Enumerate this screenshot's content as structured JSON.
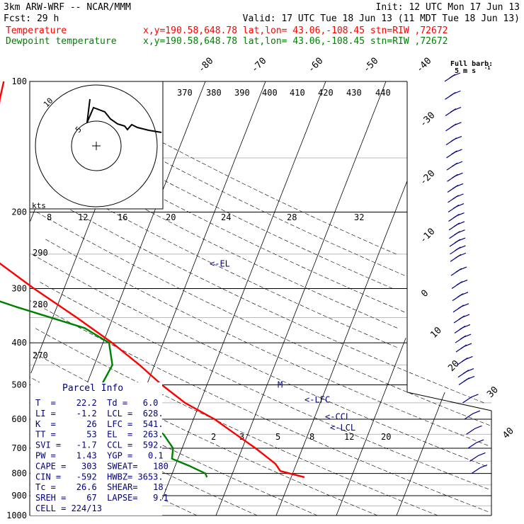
{
  "header": {
    "line1_left": "3km ARW-WRF -- NCAR/MMM",
    "line1_right": "Init: 12 UTC Mon 17 Jun 13",
    "line2_left": "Fcst:   29 h",
    "line2_right": "Valid: 17 UTC Tue 18 Jun 13 (11 MDT Tue 18 Jun 13)",
    "legend": [
      {
        "label": "Temperature",
        "info": "x,y=190.58,648.78   lat,lon= 43.06,-108.45  stn=RIW ,72672",
        "color": "#ff0000"
      },
      {
        "label": "Dewpoint temperature",
        "info": "x,y=190.58,648.78   lat,lon= 43.06,-108.45  stn=RIW ,72672",
        "color": "#008000"
      }
    ]
  },
  "barb_key": {
    "line1": "Full barb:",
    "line2": "5 m s"
  },
  "parcel_info": {
    "title": "Parcel Info",
    "rows": [
      "T  =    22.2  Td =   6.0",
      "LI =    -1.2  LCL =  628.",
      "K  =      26  LFC =  541.",
      "TT =      53  EL  =  263.",
      "SVI =   -1.7  CCL =  592.",
      "PW =    1.43  YGP =   0.1",
      "CAPE =   303  SWEAT=   180",
      "CIN =   -592  HWBZ= 3653.",
      "Tc =    26.6  SHEAR=   18.",
      "SREH =    67  LAPSE=   9.1",
      "CELL = 224/13"
    ]
  },
  "hodograph": {
    "units_label": "kts",
    "ring_labels": [
      "5",
      "10"
    ],
    "speed_axis_labels": [
      "8",
      "12",
      "16",
      "20",
      "24",
      "28",
      "32"
    ]
  },
  "chart_data": {
    "type": "line",
    "title": "",
    "xlabel": "",
    "ylabel": "",
    "y_scale": "log (pressure, hPa)",
    "ylim": [
      1000,
      100
    ],
    "xlim_at_1000hPa": [
      -25,
      45
    ],
    "pressure_labels": [
      "100",
      "200",
      "300",
      "400",
      "500",
      "600",
      "700",
      "800",
      "900",
      "1000"
    ],
    "pressure_gridlines": [
      100,
      200,
      300,
      400,
      500,
      600,
      700,
      800,
      900,
      1000
    ],
    "skewed_isotherm_labels": [
      "-80",
      "-70",
      "-60",
      "-50",
      "-40",
      "-30",
      "-20",
      "-10",
      "0",
      "10",
      "20",
      "30",
      "40"
    ],
    "isotherms": [
      -80,
      -70,
      -60,
      -50,
      -40,
      -30,
      -20,
      -10,
      0,
      10,
      20,
      30,
      40
    ],
    "theta_labels": [
      "370",
      "380",
      "390",
      "400",
      "410",
      "420",
      "430",
      "440"
    ],
    "theta_left_labels": [
      "290",
      "280",
      "270"
    ],
    "mixing_ratio_labels": [
      "2",
      "3",
      "5",
      "8",
      "12",
      "20"
    ],
    "parcel_levels": [
      {
        "label": "<-EL",
        "p": 263
      },
      {
        "label": "<-LFC",
        "p": 541
      },
      {
        "label": "<-CCL",
        "p": 592
      },
      {
        "label": "<-LCL",
        "p": 628
      },
      {
        "label": "M",
        "p": 500
      }
    ],
    "series": [
      {
        "name": "Temperature",
        "color": "#ff0000",
        "points": [
          {
            "p": 816,
            "t": 22.2
          },
          {
            "p": 800,
            "t": 19.5
          },
          {
            "p": 790,
            "t": 17.8
          },
          {
            "p": 760,
            "t": 16.5
          },
          {
            "p": 700,
            "t": 12.2
          },
          {
            "p": 650,
            "t": 8.0
          },
          {
            "p": 600,
            "t": 3.5
          },
          {
            "p": 550,
            "t": -2.5
          },
          {
            "p": 500,
            "t": -7.5
          },
          {
            "p": 450,
            "t": -12.5
          },
          {
            "p": 400,
            "t": -18.5
          },
          {
            "p": 350,
            "t": -26.0
          },
          {
            "p": 300,
            "t": -35.0
          },
          {
            "p": 250,
            "t": -45.0
          },
          {
            "p": 230,
            "t": -49.0
          },
          {
            "p": 200,
            "t": -50.5
          },
          {
            "p": 170,
            "t": -50.5
          },
          {
            "p": 150,
            "t": -51.0
          },
          {
            "p": 130,
            "t": -51.5
          },
          {
            "p": 110,
            "t": -53.0
          },
          {
            "p": 100,
            "t": -53.5
          }
        ]
      },
      {
        "name": "Dewpoint temperature",
        "color": "#008000",
        "points": [
          {
            "p": 816,
            "t": 6.0
          },
          {
            "p": 800,
            "t": 5.5
          },
          {
            "p": 770,
            "t": 2.5
          },
          {
            "p": 740,
            "t": -1.0
          },
          {
            "p": 700,
            "t": -1.5
          },
          {
            "p": 650,
            "t": -4.0
          },
          {
            "p": 600,
            "t": -8.5
          },
          {
            "p": 550,
            "t": -13.5
          },
          {
            "p": 500,
            "t": -17.5
          },
          {
            "p": 450,
            "t": -17.0
          },
          {
            "p": 400,
            "t": -19.0
          },
          {
            "p": 370,
            "t": -24.0
          },
          {
            "p": 330,
            "t": -37.0
          },
          {
            "p": 300,
            "t": -47.0
          },
          {
            "p": 275,
            "t": -56.0
          },
          {
            "p": 250,
            "t": -57.0
          },
          {
            "p": 200,
            "t": -62.0
          },
          {
            "p": 170,
            "t": -68.0
          },
          {
            "p": 150,
            "t": -72.0
          },
          {
            "p": 120,
            "t": -79.0
          },
          {
            "p": 100,
            "t": -82.0
          }
        ]
      }
    ],
    "wind_profile_pressures": [
      100,
      110,
      120,
      130,
      140,
      150,
      160,
      170,
      180,
      190,
      200,
      210,
      220,
      230,
      240,
      250,
      260,
      280,
      300,
      320,
      340,
      360,
      380,
      400,
      420,
      450,
      480,
      500,
      550,
      600,
      650,
      700,
      750,
      800
    ]
  }
}
